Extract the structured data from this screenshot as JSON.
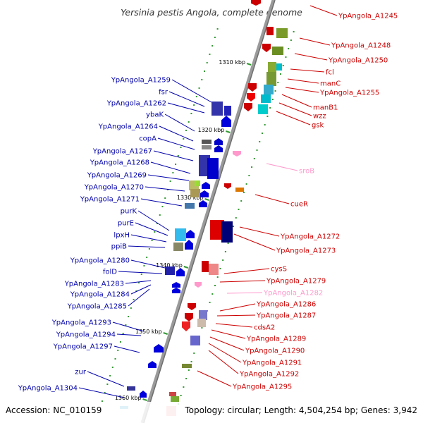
{
  "title": "Yersinia pestis Angola, complete genome",
  "footer": {
    "accession": "Accession: NC_010159",
    "topology": "Topology: circular; Length: 4,504,254 bp; Genes: 3,942"
  },
  "ticks": [
    "1310 kbp",
    "1320 kbp",
    "1330 kbp",
    "1340 kbp",
    "1350 kbp",
    "1360 kbp"
  ],
  "colors": {
    "right_label": "#cc0000",
    "left_label": "#0000aa",
    "pseudo_label": "#ff99cc",
    "axis": "#888888",
    "tick": "#339933"
  },
  "right_labels": [
    "YpAngola_A1245",
    "YpAngola_A1248",
    "YpAngola_A1250",
    "fcl",
    "manC",
    "YpAngola_A1255",
    "manB1",
    "wzz",
    "gsk",
    "sroB",
    "cueR",
    "YpAngola_A1272",
    "YpAngola_A1273",
    "cysS",
    "YpAngola_A1279",
    "YpAngola_A1282",
    "YpAngola_A1286",
    "YpAngola_A1287",
    "cdsA2",
    "YpAngola_A1289",
    "YpAngola_A1290",
    "YpAngola_A1291",
    "YpAngola_A1292",
    "YpAngola_A1295"
  ],
  "left_labels": [
    "YpAngola_A1259",
    "fsr",
    "YpAngola_A1262",
    "ybaK",
    "YpAngola_A1264",
    "copA",
    "YpAngola_A1267",
    "YpAngola_A1268",
    "YpAngola_A1269",
    "YpAngola_A1270",
    "YpAngola_A1271",
    "purK",
    "purE",
    "lpxH",
    "ppiB",
    "YpAngola_A1280",
    "folD",
    "YpAngola_A1283",
    "YpAngola_A1284",
    "YpAngola_A1285",
    "YpAngola_A1293",
    "YpAngola_A1294",
    "YpAngola_A1297",
    "zur",
    "YpAngola_A1304"
  ]
}
